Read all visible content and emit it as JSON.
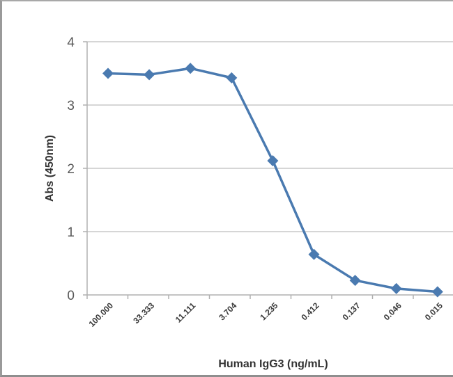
{
  "chart_data": {
    "type": "line",
    "title": "",
    "xlabel": "Human IgG3 (ng/mL)",
    "ylabel": "Abs (450nm)",
    "categories": [
      "100.000",
      "33.333",
      "11.111",
      "3.704",
      "1.235",
      "0.412",
      "0.137",
      "0.046",
      "0.015"
    ],
    "series": [
      {
        "name": "Human IgG3",
        "color": "#4a7ab0",
        "marker": "diamond",
        "values": [
          3.5,
          3.48,
          3.58,
          3.43,
          2.12,
          0.64,
          0.23,
          0.1,
          0.05
        ]
      }
    ],
    "ylim": [
      0,
      4
    ],
    "yticks": [
      "0",
      "1",
      "2",
      "3",
      "4"
    ],
    "grid": true,
    "legend": "none",
    "x_tick_rotation": -45
  },
  "colors": {
    "line": "#4a7ab0",
    "gridline": "#c8c8c8",
    "axis": "#b0b0b0"
  }
}
